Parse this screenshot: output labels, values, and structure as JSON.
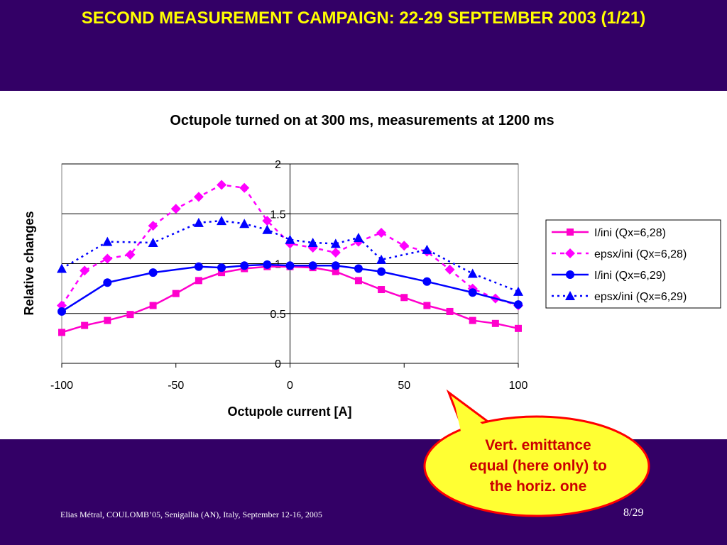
{
  "slide": {
    "title": "SECOND MEASUREMENT CAMPAIGN: 22-29 SEPTEMBER 2003 (1/21)",
    "footer": "Elias Métral, COULOMB’05, Senigallia (AN), Italy, September 12-16, 2005",
    "page": "8/29",
    "callout": "Vert. emittance\nequal (here only) to\nthe horiz. one",
    "colors": {
      "background": "#330066",
      "title": "#ffff00",
      "callout_fill": "#ffff33",
      "callout_border": "#ff0000",
      "callout_text": "#cc0000"
    }
  },
  "chart_data": {
    "type": "line",
    "title": "Octupole turned on at 300 ms, measurements at 1200 ms",
    "xlabel": "Octupole current [A]",
    "ylabel": "Relative changes",
    "xlim": [
      -100,
      100
    ],
    "ylim": [
      0,
      2
    ],
    "x_ticks": [
      -100,
      -50,
      0,
      50,
      100
    ],
    "y_ticks": [
      0,
      0.5,
      1,
      1.5,
      2
    ],
    "grid": "horizontal",
    "legend_position": "right",
    "series": [
      {
        "name": "I/ini (Qx=6,28)",
        "color": "#ff00cc",
        "marker": "square",
        "dash": "solid",
        "points": [
          [
            -100,
            0.31
          ],
          [
            -90,
            0.38
          ],
          [
            -80,
            0.43
          ],
          [
            -70,
            0.49
          ],
          [
            -60,
            0.58
          ],
          [
            -50,
            0.7
          ],
          [
            -40,
            0.83
          ],
          [
            -30,
            0.91
          ],
          [
            -20,
            0.95
          ],
          [
            -10,
            0.97
          ],
          [
            0,
            0.97
          ],
          [
            10,
            0.96
          ],
          [
            20,
            0.92
          ],
          [
            30,
            0.83
          ],
          [
            40,
            0.74
          ],
          [
            50,
            0.66
          ],
          [
            60,
            0.58
          ],
          [
            70,
            0.52
          ],
          [
            80,
            0.43
          ],
          [
            90,
            0.4
          ],
          [
            100,
            0.35
          ]
        ]
      },
      {
        "name": "epsx/ini (Qx=6,28)",
        "color": "#ff00ff",
        "marker": "diamond",
        "dash": "dashed",
        "points": [
          [
            -100,
            0.58
          ],
          [
            -90,
            0.93
          ],
          [
            -80,
            1.05
          ],
          [
            -70,
            1.09
          ],
          [
            -60,
            1.38
          ],
          [
            -50,
            1.55
          ],
          [
            -40,
            1.67
          ],
          [
            -30,
            1.79
          ],
          [
            -20,
            1.76
          ],
          [
            -10,
            1.43
          ],
          [
            0,
            1.2
          ],
          [
            10,
            1.16
          ],
          [
            20,
            1.11
          ],
          [
            30,
            1.22
          ],
          [
            40,
            1.31
          ],
          [
            50,
            1.18
          ],
          [
            60,
            1.12
          ],
          [
            70,
            0.94
          ],
          [
            80,
            0.75
          ],
          [
            90,
            0.65
          ],
          [
            100,
            0.58
          ]
        ]
      },
      {
        "name": "I/ini (Qx=6,29)",
        "color": "#0000ff",
        "marker": "circle",
        "dash": "solid",
        "points": [
          [
            -100,
            0.52
          ],
          [
            -80,
            0.81
          ],
          [
            -60,
            0.91
          ],
          [
            -40,
            0.97
          ],
          [
            -30,
            0.96
          ],
          [
            -20,
            0.98
          ],
          [
            -10,
            0.99
          ],
          [
            0,
            0.98
          ],
          [
            10,
            0.98
          ],
          [
            20,
            0.98
          ],
          [
            30,
            0.95
          ],
          [
            40,
            0.92
          ],
          [
            60,
            0.82
          ],
          [
            80,
            0.71
          ],
          [
            100,
            0.59
          ]
        ]
      },
      {
        "name": "epsx/ini (Qx=6,29)",
        "color": "#0000ff",
        "marker": "triangle",
        "dash": "dotted",
        "points": [
          [
            -100,
            0.95
          ],
          [
            -80,
            1.22
          ],
          [
            -60,
            1.21
          ],
          [
            -40,
            1.41
          ],
          [
            -30,
            1.43
          ],
          [
            -20,
            1.4
          ],
          [
            -10,
            1.34
          ],
          [
            0,
            1.24
          ],
          [
            10,
            1.21
          ],
          [
            20,
            1.2
          ],
          [
            30,
            1.26
          ],
          [
            40,
            1.04
          ],
          [
            60,
            1.14
          ],
          [
            80,
            0.9
          ],
          [
            100,
            0.72
          ]
        ]
      }
    ]
  }
}
